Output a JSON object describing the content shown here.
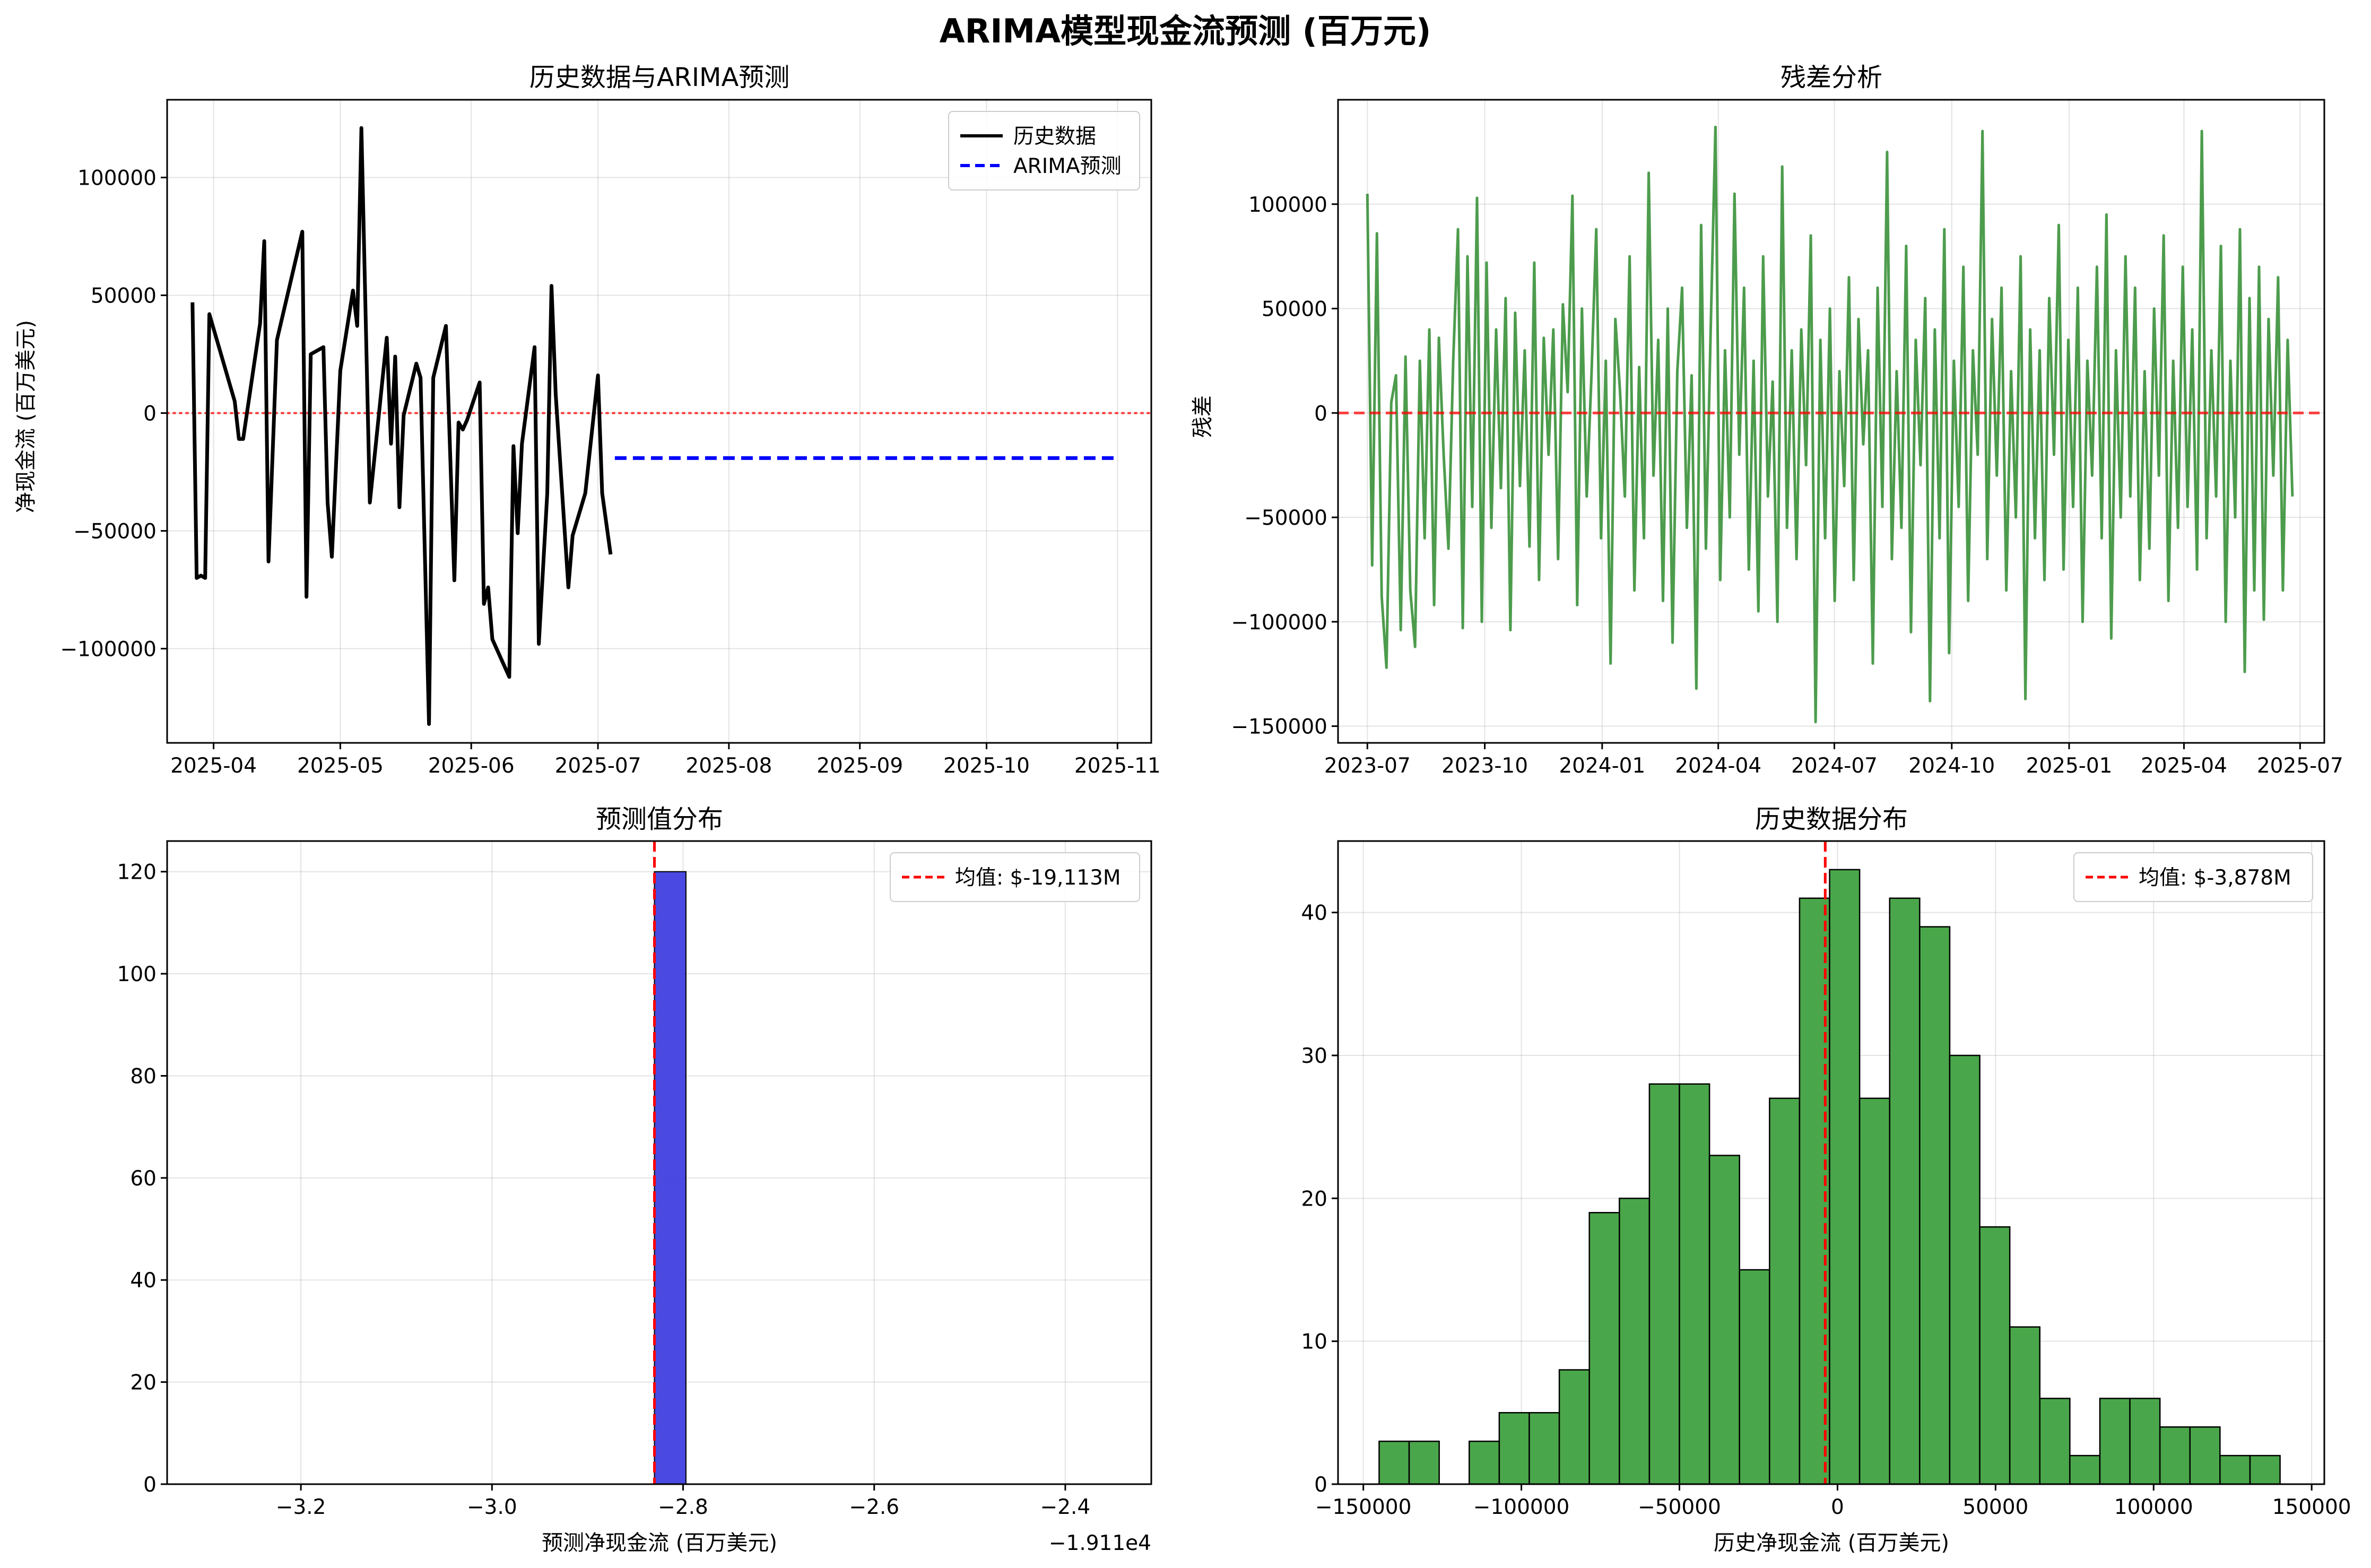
{
  "figure": {
    "title": "ARIMA模型现金流预测 (百万元)"
  },
  "chart_data": [
    {
      "id": "history-forecast",
      "type": "line",
      "title": "历史数据与ARIMA预测",
      "xlabel": "",
      "ylabel": "净现金流 (百万美元)",
      "x_ticks": [
        "2025-04",
        "2025-05",
        "2025-06",
        "2025-07",
        "2025-08",
        "2025-09",
        "2025-10",
        "2025-11"
      ],
      "y_ticks": [
        "−100000",
        "−50000",
        "0",
        "50000",
        "100000"
      ],
      "ylim": [
        -140000,
        133000
      ],
      "zero_line": 0,
      "grid": true,
      "legend_position": "top-right",
      "series": [
        {
          "name": "历史数据",
          "style": "solid",
          "color": "#000000",
          "points": [
            [
              "2025-03-27",
              47000
            ],
            [
              "2025-03-28",
              -70000
            ],
            [
              "2025-03-29",
              -69000
            ],
            [
              "2025-03-30",
              -70000
            ],
            [
              "2025-03-31",
              42000
            ],
            [
              "2025-04-06",
              5000
            ],
            [
              "2025-04-07",
              -11000
            ],
            [
              "2025-04-08",
              -11000
            ],
            [
              "2025-04-12",
              38000
            ],
            [
              "2025-04-13",
              73000
            ],
            [
              "2025-04-14",
              -63000
            ],
            [
              "2025-04-16",
              31000
            ],
            [
              "2025-04-22",
              77000
            ],
            [
              "2025-04-23",
              -78000
            ],
            [
              "2025-04-24",
              25000
            ],
            [
              "2025-04-27",
              28000
            ],
            [
              "2025-04-28",
              -38000
            ],
            [
              "2025-04-29",
              -61000
            ],
            [
              "2025-05-01",
              18000
            ],
            [
              "2025-05-04",
              52000
            ],
            [
              "2025-05-05",
              37000
            ],
            [
              "2025-05-06",
              121000
            ],
            [
              "2025-05-08",
              -38000
            ],
            [
              "2025-05-12",
              32000
            ],
            [
              "2025-05-13",
              -13000
            ],
            [
              "2025-05-14",
              24000
            ],
            [
              "2025-05-15",
              -40000
            ],
            [
              "2025-05-16",
              -1000
            ],
            [
              "2025-05-19",
              21000
            ],
            [
              "2025-05-20",
              15000
            ],
            [
              "2025-05-22",
              -132000
            ],
            [
              "2025-05-23",
              15000
            ],
            [
              "2025-05-26",
              37000
            ],
            [
              "2025-05-28",
              -71000
            ],
            [
              "2025-05-29",
              -4000
            ],
            [
              "2025-05-30",
              -7000
            ],
            [
              "2025-05-31",
              -3000
            ],
            [
              "2025-06-03",
              13000
            ],
            [
              "2025-06-04",
              -81000
            ],
            [
              "2025-06-05",
              -74000
            ],
            [
              "2025-06-06",
              -96000
            ],
            [
              "2025-06-10",
              -112000
            ],
            [
              "2025-06-11",
              -14000
            ],
            [
              "2025-06-12",
              -51000
            ],
            [
              "2025-06-13",
              -13000
            ],
            [
              "2025-06-16",
              28000
            ],
            [
              "2025-06-17",
              -98000
            ],
            [
              "2025-06-19",
              -34000
            ],
            [
              "2025-06-20",
              54000
            ],
            [
              "2025-06-21",
              8000
            ],
            [
              "2025-06-24",
              -74000
            ],
            [
              "2025-06-25",
              -52000
            ],
            [
              "2025-06-28",
              -34000
            ],
            [
              "2025-07-01",
              16000
            ],
            [
              "2025-07-02",
              -34000
            ],
            [
              "2025-07-04",
              -60000
            ]
          ]
        },
        {
          "name": "ARIMA预测",
          "style": "dashed",
          "color": "#0000ff",
          "points": [
            [
              "2025-07-05",
              -19113
            ],
            [
              "2025-11-01",
              -19113
            ]
          ]
        }
      ]
    },
    {
      "id": "residuals",
      "type": "line",
      "title": "残差分析",
      "xlabel": "",
      "ylabel": "残差",
      "x_ticks": [
        "2023-07",
        "2023-10",
        "2024-01",
        "2024-04",
        "2024-07",
        "2024-10",
        "2025-01",
        "2025-04",
        "2025-07"
      ],
      "y_ticks": [
        "−150000",
        "−100000",
        "−50000",
        "0",
        "50000",
        "100000"
      ],
      "ylim": [
        -158000,
        150000
      ],
      "zero_line": 0,
      "grid": true,
      "series": [
        {
          "name": "",
          "color": "#2e8b2e",
          "values": [
            105000,
            -73000,
            86000,
            -88000,
            -122000,
            5000,
            18000,
            -104000,
            27000,
            -85000,
            -112000,
            25000,
            -60000,
            40000,
            -92000,
            36000,
            -20000,
            -65000,
            25000,
            88000,
            -103000,
            75000,
            -45000,
            103000,
            -100000,
            72000,
            -55000,
            40000,
            -36000,
            55000,
            -104000,
            48000,
            -35000,
            30000,
            -64000,
            72000,
            -80000,
            36000,
            -20000,
            40000,
            -70000,
            52000,
            10000,
            104000,
            -92000,
            50000,
            -40000,
            18000,
            88000,
            -60000,
            25000,
            -120000,
            45000,
            10000,
            -40000,
            75000,
            -85000,
            22000,
            -60000,
            115000,
            -30000,
            35000,
            -90000,
            50000,
            -110000,
            20000,
            60000,
            -55000,
            18000,
            -132000,
            90000,
            -65000,
            40000,
            137000,
            -80000,
            30000,
            -50000,
            105000,
            -20000,
            60000,
            -75000,
            25000,
            -95000,
            75000,
            -40000,
            15000,
            -100000,
            118000,
            -55000,
            30000,
            -70000,
            40000,
            -25000,
            85000,
            -148000,
            35000,
            -60000,
            50000,
            -90000,
            20000,
            -35000,
            65000,
            -80000,
            45000,
            -15000,
            30000,
            -120000,
            60000,
            -45000,
            125000,
            -70000,
            20000,
            -55000,
            80000,
            -105000,
            35000,
            -25000,
            55000,
            -138000,
            40000,
            -60000,
            88000,
            -115000,
            25000,
            -45000,
            70000,
            -90000,
            30000,
            -20000,
            135000,
            -70000,
            45000,
            -30000,
            60000,
            -85000,
            20000,
            -50000,
            75000,
            -137000,
            40000,
            -60000,
            30000,
            -80000,
            55000,
            -20000,
            90000,
            -75000,
            35000,
            -45000,
            60000,
            -100000,
            25000,
            -30000,
            70000,
            -60000,
            95000,
            -108000,
            30000,
            -50000,
            75000,
            -40000,
            60000,
            -80000,
            20000,
            -65000,
            50000,
            -30000,
            85000,
            -90000,
            25000,
            -55000,
            70000,
            -45000,
            40000,
            -75000,
            135000,
            -60000,
            30000,
            -40000,
            80000,
            -100000,
            25000,
            -50000,
            88000,
            -124000,
            55000,
            -85000,
            70000,
            -99000,
            45000,
            -30000,
            65000,
            -85000,
            35000,
            -40000
          ]
        }
      ]
    },
    {
      "id": "forecast-distribution",
      "type": "bar",
      "title": "预测值分布",
      "xlabel": "预测净现金流 (百万美元)",
      "ylabel": "",
      "x_offset_label": "−1.911e4",
      "x_ticks": [
        "−3.2",
        "−3.0",
        "−2.8",
        "−2.6",
        "−2.4"
      ],
      "y_ticks": [
        "0",
        "20",
        "40",
        "60",
        "80",
        "100",
        "120"
      ],
      "xlim": [
        -3.34,
        -2.31
      ],
      "ylim": [
        0,
        126
      ],
      "grid": true,
      "legend_position": "top-right",
      "bars": [
        {
          "x0": -2.83,
          "x1": -2.797,
          "count": 120
        }
      ],
      "bar_color": "#4040e0",
      "mean_line": {
        "x": -2.83,
        "label": "均值: $-19,113M"
      }
    },
    {
      "id": "historical-distribution",
      "type": "bar",
      "title": "历史数据分布",
      "xlabel": "历史净现金流 (百万美元)",
      "ylabel": "",
      "x_ticks": [
        "−150000",
        "−100000",
        "−50000",
        "0",
        "50000",
        "100000",
        "150000"
      ],
      "y_ticks": [
        "0",
        "10",
        "20",
        "30",
        "40"
      ],
      "xlim": [
        -158000,
        154000
      ],
      "ylim": [
        0,
        45
      ],
      "grid": true,
      "legend_position": "top-right",
      "bin_start": -145000,
      "bin_width": 9500,
      "counts": [
        3,
        3,
        0,
        3,
        5,
        5,
        8,
        19,
        20,
        28,
        28,
        23,
        15,
        27,
        41,
        43,
        27,
        41,
        39,
        30,
        18,
        11,
        6,
        2,
        6,
        6,
        4,
        4,
        2,
        2
      ],
      "bar_color": "#4aa64a",
      "mean_line": {
        "x": -3878,
        "label": "均值: $-3,878M"
      }
    }
  ]
}
